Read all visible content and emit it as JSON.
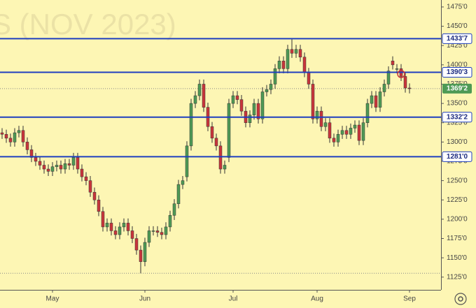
{
  "chart_data": {
    "type": "candlestick",
    "watermark": "S (NOV 2023)",
    "open": [
      1312,
      1310,
      1305,
      1300,
      1312,
      1315,
      1300,
      1290,
      1280,
      1275,
      1270,
      1265,
      1262,
      1268,
      1270,
      1265,
      1272,
      1270,
      1280,
      1265,
      1255,
      1250,
      1235,
      1225,
      1210,
      1190,
      1195,
      1185,
      1180,
      1190,
      1195,
      1185,
      1175,
      1160,
      1145,
      1170,
      1185,
      1185,
      1183,
      1180,
      1190,
      1205,
      1220,
      1245,
      1255,
      1295,
      1350,
      1360,
      1375,
      1345,
      1320,
      1305,
      1295,
      1265,
      1280,
      1350,
      1360,
      1355,
      1340,
      1325,
      1335,
      1350,
      1330,
      1365,
      1368,
      1375,
      1395,
      1405,
      1395,
      1420,
      1415,
      1420,
      1410,
      1390,
      1375,
      1330,
      1340,
      1320,
      1325,
      1305,
      1300,
      1310,
      1315,
      1310,
      1318,
      1322,
      1302,
      1325,
      1350,
      1360,
      1345,
      1365,
      1375,
      1405,
      1395,
      1395,
      1385,
      1370
    ],
    "high": [
      1318,
      1316,
      1311,
      1318,
      1321,
      1321,
      1306,
      1296,
      1286,
      1281,
      1276,
      1271,
      1274,
      1276,
      1276,
      1278,
      1278,
      1286,
      1286,
      1271,
      1261,
      1256,
      1241,
      1231,
      1216,
      1201,
      1201,
      1191,
      1196,
      1201,
      1201,
      1191,
      1181,
      1166,
      1176,
      1191,
      1191,
      1191,
      1189,
      1196,
      1211,
      1226,
      1251,
      1256,
      1301,
      1356,
      1366,
      1381,
      1381,
      1351,
      1326,
      1311,
      1301,
      1276,
      1356,
      1366,
      1366,
      1361,
      1346,
      1341,
      1356,
      1356,
      1371,
      1374,
      1381,
      1401,
      1411,
      1411,
      1426,
      1434,
      1426,
      1426,
      1416,
      1396,
      1381,
      1346,
      1346,
      1331,
      1331,
      1311,
      1316,
      1321,
      1321,
      1324,
      1328,
      1328,
      1331,
      1356,
      1366,
      1366,
      1371,
      1381,
      1398,
      1411,
      1401,
      1401,
      1391,
      1376
    ],
    "low": [
      1304,
      1299,
      1294,
      1294,
      1306,
      1294,
      1284,
      1274,
      1269,
      1264,
      1259,
      1256,
      1256,
      1262,
      1259,
      1259,
      1264,
      1264,
      1259,
      1249,
      1244,
      1229,
      1219,
      1204,
      1184,
      1184,
      1179,
      1174,
      1174,
      1184,
      1179,
      1169,
      1154,
      1130,
      1139,
      1164,
      1179,
      1177,
      1174,
      1174,
      1184,
      1199,
      1214,
      1239,
      1249,
      1289,
      1344,
      1354,
      1339,
      1314,
      1299,
      1289,
      1259,
      1259,
      1274,
      1344,
      1349,
      1334,
      1319,
      1319,
      1329,
      1324,
      1324,
      1359,
      1362,
      1369,
      1389,
      1389,
      1389,
      1409,
      1409,
      1404,
      1384,
      1369,
      1324,
      1324,
      1314,
      1314,
      1299,
      1294,
      1294,
      1304,
      1304,
      1304,
      1312,
      1296,
      1296,
      1319,
      1344,
      1339,
      1339,
      1359,
      1369,
      1394,
      1389,
      1379,
      1364,
      1363
    ],
    "close": [
      1310,
      1305,
      1300,
      1312,
      1315,
      1300,
      1290,
      1280,
      1275,
      1270,
      1265,
      1262,
      1268,
      1270,
      1265,
      1272,
      1270,
      1280,
      1265,
      1255,
      1250,
      1235,
      1225,
      1210,
      1190,
      1195,
      1185,
      1180,
      1190,
      1195,
      1185,
      1175,
      1160,
      1145,
      1170,
      1185,
      1185,
      1183,
      1180,
      1190,
      1205,
      1220,
      1245,
      1250,
      1295,
      1350,
      1360,
      1375,
      1345,
      1320,
      1305,
      1295,
      1265,
      1270,
      1350,
      1360,
      1355,
      1340,
      1325,
      1335,
      1350,
      1330,
      1365,
      1368,
      1375,
      1395,
      1405,
      1395,
      1420,
      1415,
      1420,
      1410,
      1390,
      1375,
      1330,
      1340,
      1320,
      1325,
      1305,
      1300,
      1310,
      1315,
      1310,
      1318,
      1322,
      1302,
      1325,
      1350,
      1360,
      1345,
      1365,
      1375,
      1392,
      1400,
      1395,
      1385,
      1370,
      1369.25
    ],
    "up_color": "#4e9a55",
    "down_color": "#c9353b",
    "level_color": "#1f3fbf",
    "ylim": [
      1108.5,
      1484
    ],
    "yticks": [
      {
        "value": 1125,
        "label": "1125'0"
      },
      {
        "value": 1150,
        "label": "1150'0"
      },
      {
        "value": 1175,
        "label": "1175'0"
      },
      {
        "value": 1200,
        "label": "1200'0"
      },
      {
        "value": 1225,
        "label": "1225'0"
      },
      {
        "value": 1250,
        "label": "1250'0"
      },
      {
        "value": 1275,
        "label": "1275'0"
      },
      {
        "value": 1300,
        "label": "1300'0"
      },
      {
        "value": 1325,
        "label": "1325'0"
      },
      {
        "value": 1350,
        "label": "1350'0"
      },
      {
        "value": 1375,
        "label": "1375'0"
      },
      {
        "value": 1400,
        "label": "1400'0"
      },
      {
        "value": 1425,
        "label": "1425'0"
      },
      {
        "value": 1450,
        "label": "1450'0"
      },
      {
        "value": 1475,
        "label": "1475'0"
      }
    ],
    "xticks": [
      {
        "value": 12,
        "label": "May"
      },
      {
        "value": 34,
        "label": "Jun"
      },
      {
        "value": 55,
        "label": "Jul"
      },
      {
        "value": 75,
        "label": "Aug"
      },
      {
        "value": 97,
        "label": "Sep"
      }
    ],
    "levels": [
      {
        "value": 1433.875,
        "label": "1433'7"
      },
      {
        "value": 1390.375,
        "label": "1390'3"
      },
      {
        "value": 1332.25,
        "label": "1332'2"
      },
      {
        "value": 1281,
        "label": "1281'0"
      }
    ],
    "last_price": {
      "value": 1369.25,
      "label": "1369'2"
    },
    "low_line": 1130
  }
}
